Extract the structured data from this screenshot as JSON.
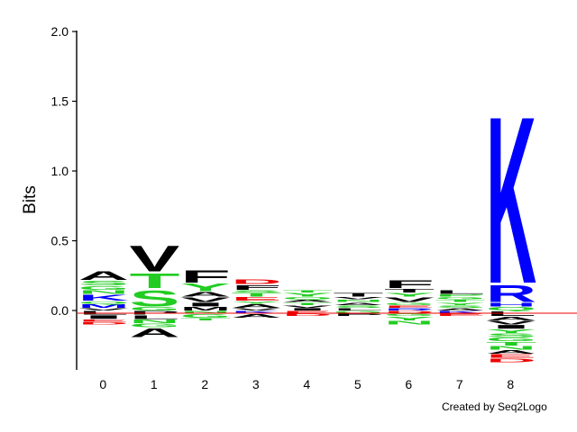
{
  "chart_data": {
    "type": "sequence-logo",
    "ylabel": "Bits",
    "ylim": [
      -0.45,
      2.0
    ],
    "yticks": [
      {
        "value": 2.0,
        "label": "2.0"
      },
      {
        "value": 1.5,
        "label": "1.5"
      },
      {
        "value": 1.0,
        "label": "1.0"
      },
      {
        "value": 0.5,
        "label": "0.5"
      },
      {
        "value": 0.0,
        "label": "0.0"
      }
    ],
    "positions": [
      "0",
      "1",
      "2",
      "3",
      "4",
      "5",
      "6",
      "7",
      "8"
    ],
    "credit": "Created by Seq2Logo",
    "colors": {
      "black": "#000000",
      "green": "#22cc22",
      "blue": "#0000ff",
      "red": "#ee0000",
      "baseline": "#ee0000"
    },
    "stacks": [
      {
        "pos": "0",
        "up": [
          [
            "V",
            0.02,
            "black"
          ],
          [
            "M",
            0.03,
            "blue"
          ],
          [
            "Q",
            0.02,
            "green"
          ],
          [
            "K",
            0.05,
            "blue"
          ],
          [
            "N",
            0.03,
            "green"
          ],
          [
            "G",
            0.03,
            "green"
          ],
          [
            "S",
            0.04,
            "green"
          ],
          [
            "A",
            0.07,
            "black"
          ]
        ],
        "down": [
          [
            "L",
            0.03,
            "black"
          ],
          [
            "I",
            0.03,
            "black"
          ],
          [
            "E",
            0.02,
            "red"
          ],
          [
            "D",
            0.02,
            "red"
          ]
        ]
      },
      {
        "pos": "1",
        "up": [
          [
            "G",
            0.03,
            "green"
          ],
          [
            "S",
            0.13,
            "green"
          ],
          [
            "T",
            0.12,
            "green"
          ],
          [
            "V",
            0.21,
            "black"
          ]
        ],
        "down": [
          [
            "P",
            0.03,
            "black"
          ],
          [
            "L",
            0.03,
            "black"
          ],
          [
            "N",
            0.03,
            "green"
          ],
          [
            "G",
            0.03,
            "green"
          ],
          [
            "A",
            0.07,
            "black"
          ]
        ]
      },
      {
        "pos": "2",
        "up": [
          [
            "M",
            0.03,
            "black"
          ],
          [
            "I",
            0.03,
            "black"
          ],
          [
            "V",
            0.04,
            "black"
          ],
          [
            "A",
            0.04,
            "black"
          ],
          [
            "Y",
            0.06,
            "green"
          ],
          [
            "F",
            0.1,
            "black"
          ]
        ],
        "down": [
          [
            "N",
            0.02,
            "green"
          ],
          [
            "G",
            0.03,
            "green"
          ],
          [
            "T",
            0.02,
            "green"
          ]
        ]
      },
      {
        "pos": "3",
        "up": [
          [
            "V",
            0.02,
            "black"
          ],
          [
            "A",
            0.03,
            "black"
          ],
          [
            "Y",
            0.02,
            "green"
          ],
          [
            "E",
            0.03,
            "red"
          ],
          [
            "T",
            0.03,
            "green"
          ],
          [
            "S",
            0.02,
            "green"
          ],
          [
            "F",
            0.04,
            "black"
          ],
          [
            "D",
            0.04,
            "red"
          ]
        ],
        "down": [
          [
            "K",
            0.02,
            "blue"
          ],
          [
            "A",
            0.03,
            "black"
          ]
        ]
      },
      {
        "pos": "4",
        "up": [
          [
            "I",
            0.02,
            "black"
          ],
          [
            "V",
            0.02,
            "black"
          ],
          [
            "T",
            0.02,
            "green"
          ],
          [
            "A",
            0.02,
            "black"
          ],
          [
            "Q",
            0.02,
            "green"
          ],
          [
            "Y",
            0.03,
            "green"
          ],
          [
            "T",
            0.02,
            "green"
          ]
        ],
        "down": [
          [
            "E",
            0.02,
            "red"
          ],
          [
            "D",
            0.02,
            "red"
          ]
        ]
      },
      {
        "pos": "5",
        "up": [
          [
            "L",
            0.02,
            "black"
          ],
          [
            "S",
            0.02,
            "green"
          ],
          [
            "A",
            0.02,
            "black"
          ],
          [
            "N",
            0.02,
            "green"
          ],
          [
            "V",
            0.02,
            "black"
          ],
          [
            "T",
            0.03,
            "black"
          ]
        ],
        "down": [
          [
            "G",
            0.02,
            "green"
          ],
          [
            "P",
            0.02,
            "black"
          ]
        ]
      },
      {
        "pos": "6",
        "up": [
          [
            "R",
            0.02,
            "blue"
          ],
          [
            "E",
            0.02,
            "red"
          ],
          [
            "G",
            0.02,
            "green"
          ],
          [
            "V",
            0.04,
            "black"
          ],
          [
            "Y",
            0.03,
            "green"
          ],
          [
            "T",
            0.03,
            "black"
          ],
          [
            "F",
            0.06,
            "black"
          ]
        ],
        "down": [
          [
            "D",
            0.02,
            "red"
          ],
          [
            "G",
            0.02,
            "green"
          ],
          [
            "Y",
            0.03,
            "green"
          ],
          [
            "N",
            0.03,
            "green"
          ]
        ]
      },
      {
        "pos": "7",
        "up": [
          [
            "A",
            0.02,
            "black"
          ],
          [
            "S",
            0.02,
            "green"
          ],
          [
            "Y",
            0.02,
            "green"
          ],
          [
            "T",
            0.02,
            "green"
          ],
          [
            "G",
            0.02,
            "green"
          ],
          [
            "P",
            0.02,
            "green"
          ],
          [
            "L",
            0.03,
            "black"
          ]
        ],
        "down": [
          [
            "K",
            0.02,
            "blue"
          ],
          [
            "E",
            0.02,
            "red"
          ]
        ]
      },
      {
        "pos": "8",
        "up": [
          [
            "Q",
            0.03,
            "green"
          ],
          [
            "H",
            0.03,
            "blue"
          ],
          [
            "R",
            0.14,
            "blue"
          ],
          [
            "K",
            1.38,
            "blue"
          ]
        ],
        "down": [
          [
            "L",
            0.04,
            "black"
          ],
          [
            "A",
            0.03,
            "black"
          ],
          [
            "V",
            0.03,
            "black"
          ],
          [
            "I",
            0.03,
            "black"
          ],
          [
            "Y",
            0.03,
            "green"
          ],
          [
            "S",
            0.03,
            "green"
          ],
          [
            "G",
            0.03,
            "green"
          ],
          [
            "T",
            0.03,
            "green"
          ],
          [
            "N",
            0.03,
            "green"
          ],
          [
            "A",
            0.03,
            "black"
          ],
          [
            "E",
            0.03,
            "red"
          ],
          [
            "D",
            0.03,
            "red"
          ]
        ]
      }
    ]
  }
}
